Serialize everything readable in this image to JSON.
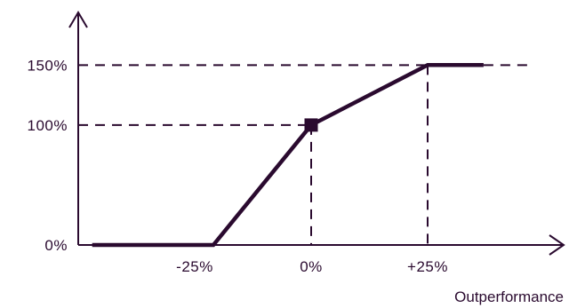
{
  "chart_data": {
    "type": "line",
    "title": "",
    "xlabel": "Outperformance",
    "ylabel": "",
    "x_ticks": [
      {
        "value": -25,
        "label": "-25%"
      },
      {
        "value": 0,
        "label": "0%"
      },
      {
        "value": 25,
        "label": "+25%"
      }
    ],
    "y_ticks": [
      {
        "value": 0,
        "label": "0%"
      },
      {
        "value": 100,
        "label": "100%"
      },
      {
        "value": 150,
        "label": "150%"
      }
    ],
    "series": [
      {
        "values": [
          {
            "x": -47,
            "y": 0
          },
          {
            "x": -21,
            "y": 0
          },
          {
            "x": 0,
            "y": 100
          },
          {
            "x": 25,
            "y": 150
          },
          {
            "x": 37,
            "y": 150
          }
        ]
      }
    ],
    "marker": {
      "x": 0,
      "y": 100,
      "shape": "square"
    },
    "xlim": [
      -50,
      50
    ],
    "ylim": [
      0,
      170
    ],
    "grid": false,
    "line_color": "#2a0a2f"
  }
}
